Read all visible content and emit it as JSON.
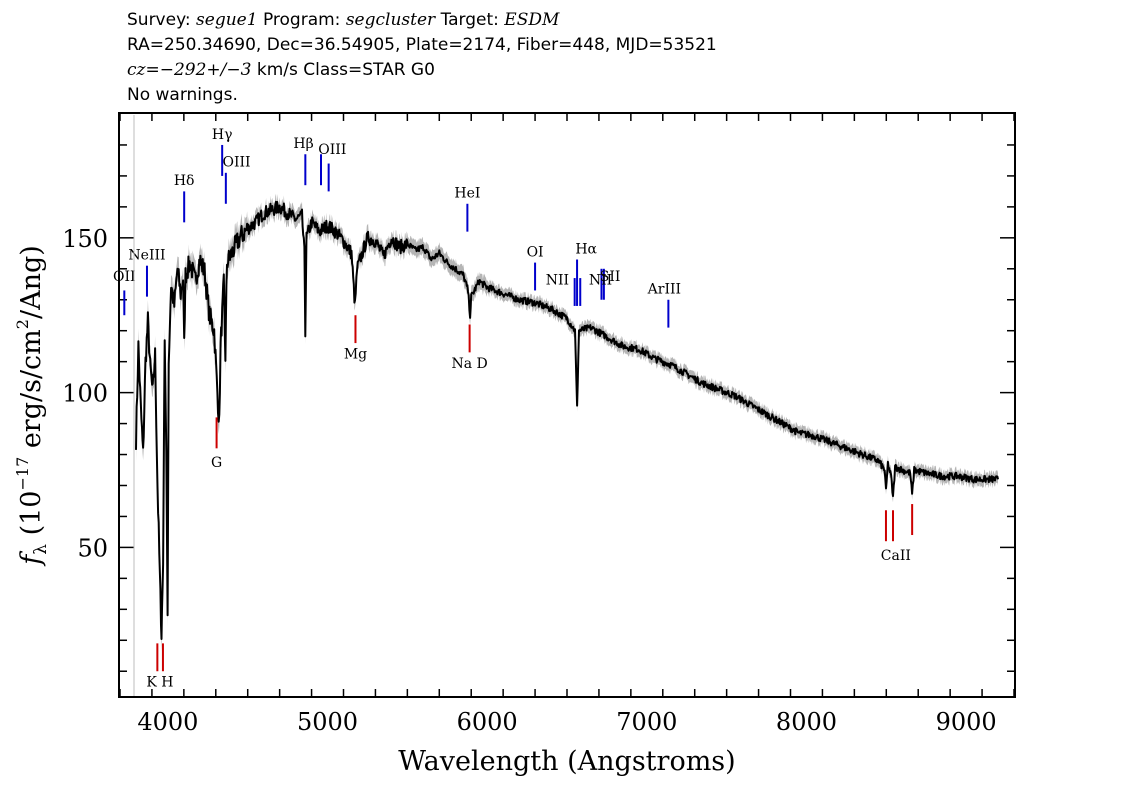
{
  "header": {
    "line1": {
      "survey_label": "Survey:",
      "survey": "segue1",
      "program_label": "Program:",
      "program": "segcluster",
      "target_label": "Target:",
      "target": "ESDM"
    },
    "line2": "RA=250.34690, Dec=36.54905, Plate=2174, Fiber=448, MJD=53521",
    "line3": {
      "cz_label": "cz",
      "cz_value": "=−292+/−3",
      "cz_unit": "km/s Class=STAR G0"
    },
    "line4": "No warnings."
  },
  "chart_data": {
    "type": "line",
    "xlabel": "Wavelength (Angstroms)",
    "ylabel": "f_λ (10^-17 erg/s/cm^2/Ang)",
    "xlim": [
      3700,
      9300
    ],
    "ylim": [
      2,
      190
    ],
    "x_ticks": [
      4000,
      5000,
      6000,
      7000,
      8000,
      9000
    ],
    "y_ticks": [
      50,
      100,
      150
    ],
    "grid": false,
    "series": [
      {
        "color": "#000000",
        "error_color": "#b5b5b5",
        "points": [
          [
            3800,
            85
          ],
          [
            3815,
            115
          ],
          [
            3830,
            95
          ],
          [
            3845,
            80
          ],
          [
            3860,
            110
          ],
          [
            3875,
            123
          ],
          [
            3890,
            108
          ],
          [
            3905,
            100
          ],
          [
            3920,
            112
          ],
          [
            3935,
            70
          ],
          [
            3950,
            40
          ],
          [
            3960,
            22
          ],
          [
            3970,
            45
          ],
          [
            3980,
            120
          ],
          [
            3990,
            80
          ],
          [
            3998,
            28
          ],
          [
            4005,
            110
          ],
          [
            4020,
            135
          ],
          [
            4040,
            128
          ],
          [
            4060,
            140
          ],
          [
            4080,
            132
          ],
          [
            4095,
            137
          ],
          [
            4102,
            115
          ],
          [
            4110,
            138
          ],
          [
            4140,
            142
          ],
          [
            4170,
            136
          ],
          [
            4200,
            143
          ],
          [
            4230,
            139
          ],
          [
            4260,
            125
          ],
          [
            4290,
            120
          ],
          [
            4310,
            100
          ],
          [
            4322,
            90
          ],
          [
            4330,
            115
          ],
          [
            4340,
            125
          ],
          [
            4350,
            135
          ],
          [
            4360,
            112
          ],
          [
            4370,
            142
          ],
          [
            4400,
            145
          ],
          [
            4450,
            150
          ],
          [
            4500,
            153
          ],
          [
            4550,
            155
          ],
          [
            4600,
            158
          ],
          [
            4650,
            159
          ],
          [
            4700,
            160
          ],
          [
            4750,
            158
          ],
          [
            4800,
            156
          ],
          [
            4840,
            157
          ],
          [
            4855,
            145
          ],
          [
            4861,
            120
          ],
          [
            4868,
            150
          ],
          [
            4900,
            155
          ],
          [
            4950,
            152
          ],
          [
            5000,
            154
          ],
          [
            5050,
            152
          ],
          [
            5100,
            149
          ],
          [
            5150,
            145
          ],
          [
            5172,
            128
          ],
          [
            5185,
            140
          ],
          [
            5250,
            150
          ],
          [
            5300,
            149
          ],
          [
            5350,
            144
          ],
          [
            5400,
            150
          ],
          [
            5450,
            147
          ],
          [
            5500,
            148
          ],
          [
            5550,
            146
          ],
          [
            5600,
            147
          ],
          [
            5650,
            143
          ],
          [
            5700,
            145
          ],
          [
            5750,
            142
          ],
          [
            5800,
            140
          ],
          [
            5850,
            138
          ],
          [
            5880,
            133
          ],
          [
            5893,
            125
          ],
          [
            5900,
            131
          ],
          [
            5950,
            136
          ],
          [
            6000,
            134
          ],
          [
            6100,
            132
          ],
          [
            6200,
            130
          ],
          [
            6300,
            129
          ],
          [
            6400,
            127
          ],
          [
            6500,
            124
          ],
          [
            6550,
            120
          ],
          [
            6563,
            95
          ],
          [
            6575,
            120
          ],
          [
            6650,
            121
          ],
          [
            6750,
            118
          ],
          [
            6850,
            115
          ],
          [
            6950,
            114
          ],
          [
            7050,
            111
          ],
          [
            7150,
            109
          ],
          [
            7250,
            106
          ],
          [
            7350,
            103
          ],
          [
            7450,
            101
          ],
          [
            7550,
            99
          ],
          [
            7650,
            96
          ],
          [
            7750,
            93
          ],
          [
            7850,
            90
          ],
          [
            7950,
            87
          ],
          [
            8050,
            86
          ],
          [
            8150,
            84
          ],
          [
            8250,
            82
          ],
          [
            8350,
            80
          ],
          [
            8450,
            78
          ],
          [
            8490,
            75
          ],
          [
            8498,
            68
          ],
          [
            8510,
            77
          ],
          [
            8530,
            73
          ],
          [
            8542,
            66
          ],
          [
            8555,
            76
          ],
          [
            8600,
            75
          ],
          [
            8650,
            74
          ],
          [
            8662,
            67
          ],
          [
            8675,
            75
          ],
          [
            8750,
            74
          ],
          [
            8850,
            73
          ],
          [
            8950,
            73
          ],
          [
            9050,
            72
          ],
          [
            9150,
            72
          ],
          [
            9200,
            72
          ]
        ]
      }
    ],
    "line_markers": {
      "emission": {
        "color": "#0000cc",
        "items": [
          {
            "label": "OII",
            "wavelength": 3727,
            "y_from": 125,
            "y_to": 133
          },
          {
            "label": "NeIII",
            "wavelength": 3869,
            "y_from": 131,
            "y_to": 141
          },
          {
            "label": "Hδ",
            "wavelength": 4102,
            "y_from": 155,
            "y_to": 165
          },
          {
            "label": "Hγ",
            "wavelength": 4340,
            "y_from": 170,
            "y_to": 180
          },
          {
            "label": "OIII",
            "wavelength": 4363,
            "y_from": 161,
            "y_to": 171
          },
          {
            "label": "Hβ",
            "wavelength": 4861,
            "y_from": 167,
            "y_to": 177
          },
          {
            "label": "OIII",
            "wavelength": 4959,
            "y_from": 167,
            "y_to": 177
          },
          {
            "label": "OIII",
            "wavelength": 5007,
            "y_from": 165,
            "y_to": 174
          },
          {
            "label": "HeI",
            "wavelength": 5876,
            "y_from": 152,
            "y_to": 161
          },
          {
            "label": "OI",
            "wavelength": 6300,
            "y_from": 133,
            "y_to": 142
          },
          {
            "label": "NII",
            "wavelength": 6548,
            "y_from": 128,
            "y_to": 137
          },
          {
            "label": "Hα",
            "wavelength": 6563,
            "y_from": 128,
            "y_to": 143
          },
          {
            "label": "NII",
            "wavelength": 6583,
            "y_from": 128,
            "y_to": 137
          },
          {
            "label": "SII",
            "wavelength": 6716,
            "y_from": 130,
            "y_to": 140
          },
          {
            "label": "SII",
            "wavelength": 6731,
            "y_from": 130,
            "y_to": 140
          },
          {
            "label": "ArIII",
            "wavelength": 7135,
            "y_from": 121,
            "y_to": 130
          }
        ]
      },
      "absorption": {
        "color": "#cc0000",
        "items": [
          {
            "label": "K",
            "wavelength": 3934,
            "y_from": 10,
            "y_to": 19
          },
          {
            "label": "H",
            "wavelength": 3969,
            "y_from": 10,
            "y_to": 19
          },
          {
            "label": "G",
            "wavelength": 4305,
            "y_from": 82,
            "y_to": 92
          },
          {
            "label": "Mg",
            "wavelength": 5175,
            "y_from": 116,
            "y_to": 125
          },
          {
            "label": "Na",
            "wavelength": 5890,
            "y_from": 113,
            "y_to": 122
          },
          {
            "label": "CaII",
            "wavelength": 8498,
            "y_from": 52,
            "y_to": 62
          },
          {
            "label": "CaII",
            "wavelength": 8542,
            "y_from": 52,
            "y_to": 62
          },
          {
            "label": "CaII",
            "wavelength": 8662,
            "y_from": 54,
            "y_to": 64
          }
        ]
      },
      "text_labels": [
        {
          "text": "OII",
          "wavelength": 3727,
          "y": 136,
          "color": "#000000",
          "anchor": "middle"
        },
        {
          "text": "NeIII",
          "wavelength": 3869,
          "y": 143,
          "color": "#000000",
          "anchor": "middle"
        },
        {
          "text": "Hδ",
          "wavelength": 4102,
          "y": 167,
          "color": "#000000",
          "anchor": "middle"
        },
        {
          "text": "Hγ",
          "wavelength": 4340,
          "y": 182,
          "color": "#000000",
          "anchor": "middle"
        },
        {
          "text": "OIII",
          "wavelength": 4430,
          "y": 173,
          "color": "#000000",
          "anchor": "middle"
        },
        {
          "text": "Hβ",
          "wavelength": 4850,
          "y": 179,
          "color": "#000000",
          "anchor": "middle"
        },
        {
          "text": "OIII",
          "wavelength": 5030,
          "y": 177,
          "color": "#000000",
          "anchor": "middle"
        },
        {
          "text": "HeI",
          "wavelength": 5876,
          "y": 163,
          "color": "#000000",
          "anchor": "middle"
        },
        {
          "text": "OI",
          "wavelength": 6300,
          "y": 144,
          "color": "#000000",
          "anchor": "middle"
        },
        {
          "text": "NII",
          "wavelength": 6440,
          "y": 135,
          "color": "#000000",
          "anchor": "middle"
        },
        {
          "text": "Hα",
          "wavelength": 6620,
          "y": 145,
          "color": "#000000",
          "anchor": "middle"
        },
        {
          "text": "NII",
          "wavelength": 6710,
          "y": 135,
          "color": "#000000",
          "anchor": "middle"
        },
        {
          "text": "SII",
          "wavelength": 6770,
          "y": 136,
          "color": "#000000",
          "anchor": "middle"
        },
        {
          "text": "ArIII",
          "wavelength": 7110,
          "y": 132,
          "color": "#000000",
          "anchor": "middle"
        },
        {
          "text": "K H",
          "wavelength": 3950,
          "y": 5,
          "color": "#000000",
          "anchor": "middle"
        },
        {
          "text": "G",
          "wavelength": 4305,
          "y": 76,
          "color": "#000000",
          "anchor": "middle"
        },
        {
          "text": "Mg",
          "wavelength": 5175,
          "y": 111,
          "color": "#000000",
          "anchor": "middle"
        },
        {
          "text": "Na  D",
          "wavelength": 5890,
          "y": 108,
          "color": "#000000",
          "anchor": "middle"
        },
        {
          "text": "CaII",
          "wavelength": 8560,
          "y": 46,
          "color": "#000000",
          "anchor": "middle"
        }
      ]
    }
  }
}
